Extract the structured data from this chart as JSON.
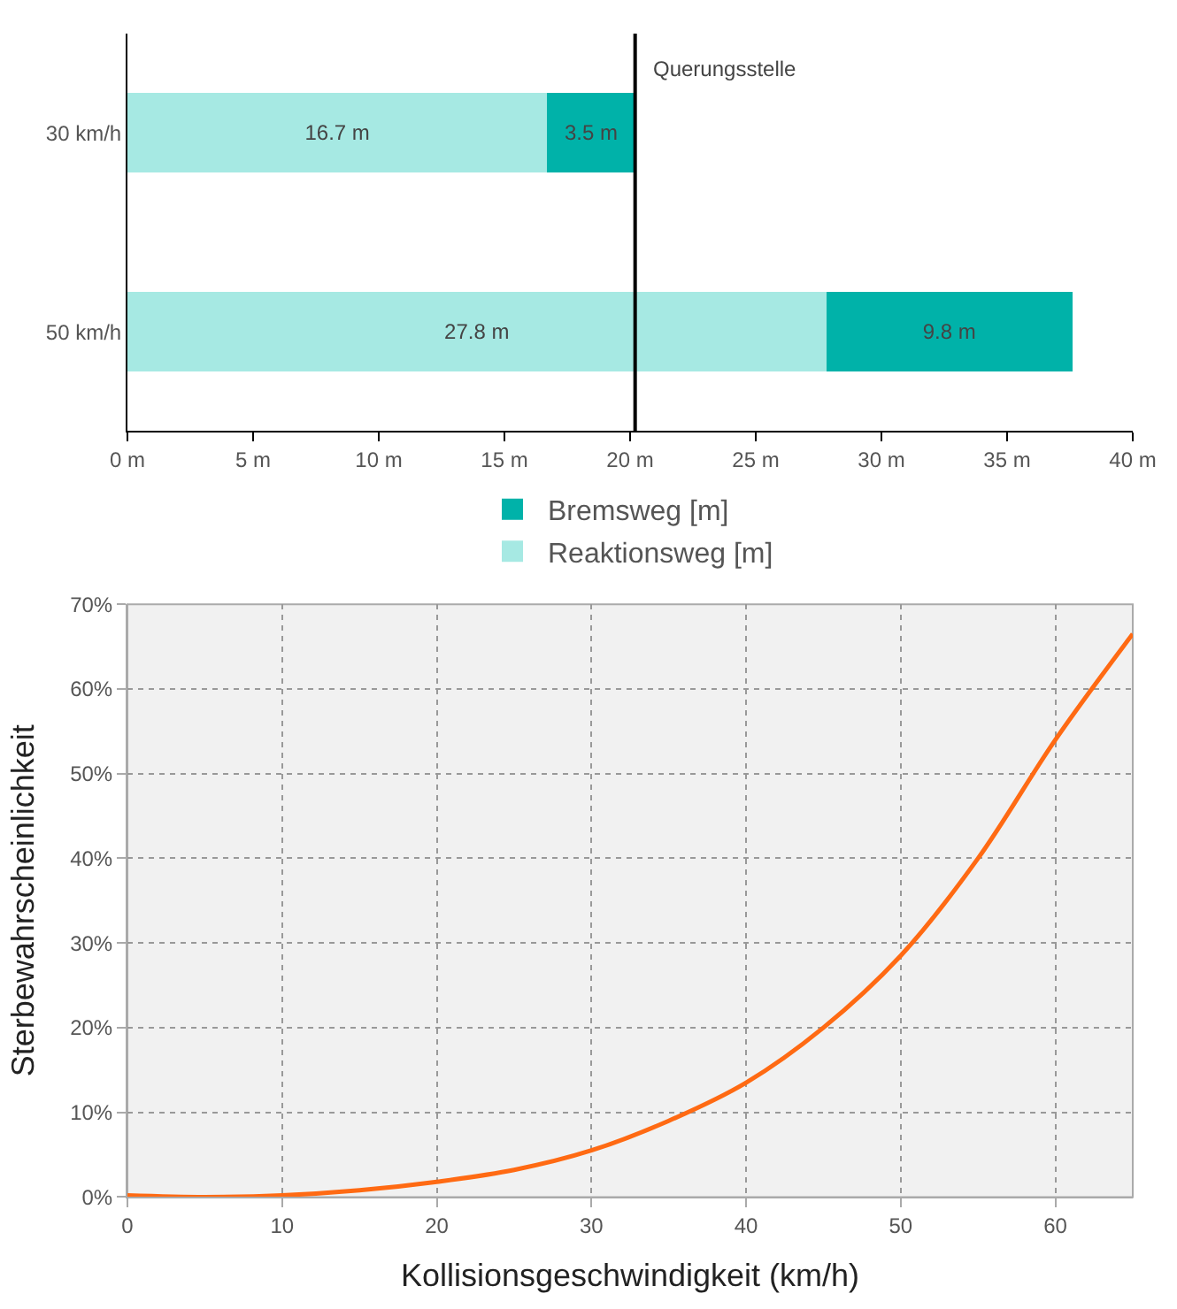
{
  "chart_data": [
    {
      "type": "bar",
      "orientation": "horizontal",
      "stacked": true,
      "categories": [
        "30 km/h",
        "50 km/h"
      ],
      "series": [
        {
          "name": "Reaktionsweg [m]",
          "color": "#a6e9e3",
          "values": [
            16.7,
            27.8
          ],
          "value_labels": [
            "16.7 m",
            "27.8 m"
          ]
        },
        {
          "name": "Bremsweg [m]",
          "color": "#00b2a9",
          "values": [
            3.5,
            9.8
          ],
          "value_labels": [
            "3.5 m",
            "9.8 m"
          ]
        }
      ],
      "xlim": [
        0,
        40
      ],
      "xticks": [
        {
          "value": 0,
          "label": "0 m"
        },
        {
          "value": 5,
          "label": "5 m"
        },
        {
          "value": 10,
          "label": "10 m"
        },
        {
          "value": 15,
          "label": "15 m"
        },
        {
          "value": 20,
          "label": "20 m"
        },
        {
          "value": 25,
          "label": "25 m"
        },
        {
          "value": 30,
          "label": "30 m"
        },
        {
          "value": 35,
          "label": "35 m"
        },
        {
          "value": 40,
          "label": "40 m"
        }
      ],
      "ref_lines": [
        {
          "axis": "x",
          "value": 20.2,
          "label": "Querungsstelle",
          "color": "#000000"
        }
      ],
      "legend": "bottom",
      "grid": false
    },
    {
      "type": "line",
      "x": [
        0,
        5,
        10,
        15,
        20,
        25,
        30,
        35,
        40,
        45,
        50,
        55,
        60,
        65
      ],
      "series": [
        {
          "color": "#ff6a13",
          "values": [
            0.2,
            0,
            0.2,
            0.8,
            1.8,
            3.2,
            5.5,
            9,
            13.5,
            20,
            28.5,
            40,
            54,
            66.5
          ]
        }
      ],
      "xlabel": "Kollisionsgeschwindigkeit (km/h)",
      "ylabel": "Sterbewahrscheinlichkeit",
      "xlim": [
        0,
        65
      ],
      "xticks": [
        0,
        10,
        20,
        30,
        40,
        50,
        60
      ],
      "ylim": [
        0,
        70
      ],
      "yticks": [
        {
          "value": 0,
          "label": "0%"
        },
        {
          "value": 10,
          "label": "10%"
        },
        {
          "value": 20,
          "label": "20%"
        },
        {
          "value": 30,
          "label": "30%"
        },
        {
          "value": 40,
          "label": "40%"
        },
        {
          "value": 50,
          "label": "50%"
        },
        {
          "value": 60,
          "label": "60%"
        },
        {
          "value": 70,
          "label": "70%"
        }
      ],
      "grid": true,
      "legend": false,
      "marker": "none",
      "line_style": "solid"
    }
  ]
}
